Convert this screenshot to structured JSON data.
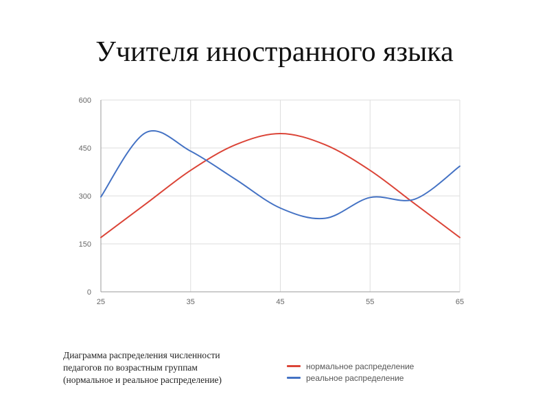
{
  "slide": {
    "title": "Учителя иностранного языка",
    "caption": [
      "Диаграмма распределения численности",
      "педагогов по возрастным группам",
      "(нормальное и реальное распределение)"
    ]
  },
  "chart_data": {
    "type": "line",
    "title": "",
    "xlabel": "",
    "ylabel": "",
    "xlim": [
      25,
      65
    ],
    "ylim": [
      0,
      600
    ],
    "x_ticks": [
      25,
      35,
      45,
      55,
      65
    ],
    "y_ticks": [
      0,
      150,
      300,
      450,
      600
    ],
    "grid": true,
    "legend_position": "bottom-right",
    "series": [
      {
        "name": "нормальное распределение",
        "color": "#db4437",
        "x": [
          25,
          30,
          35,
          40,
          45,
          50,
          55,
          60,
          65
        ],
        "y": [
          170,
          275,
          380,
          460,
          495,
          460,
          380,
          275,
          170
        ]
      },
      {
        "name": "реальное распределение",
        "color": "#4472c4",
        "x": [
          25,
          30,
          35,
          40,
          45,
          50,
          55,
          60,
          65
        ],
        "y": [
          297,
          498,
          440,
          352,
          262,
          230,
          295,
          290,
          393
        ]
      }
    ]
  }
}
